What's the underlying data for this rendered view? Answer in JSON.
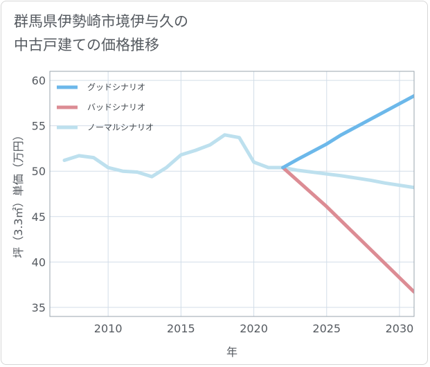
{
  "title_lines": [
    "群馬県伊勢崎市境伊与久の",
    "中古戸建ての価格推移"
  ],
  "chart_data": {
    "type": "line",
    "xlabel": "年",
    "ylabel": "坪（3.3㎡）単価（万円）",
    "xlim": [
      2006,
      2031
    ],
    "ylim": [
      34,
      61
    ],
    "x_ticks": [
      2010,
      2015,
      2020,
      2025,
      2030
    ],
    "y_ticks": [
      35,
      40,
      45,
      50,
      55,
      60
    ],
    "grid": true,
    "legend_position": "top-left",
    "series": [
      {
        "name": "グッドシナリオ",
        "color": "#6cb8ea",
        "x": [
          2022,
          2023,
          2025,
          2026,
          2031
        ],
        "values": [
          50.4,
          51.3,
          53.0,
          54.0,
          58.3
        ]
      },
      {
        "name": "バッドシナリオ",
        "color": "#dc8c94",
        "x": [
          2022,
          2025,
          2031
        ],
        "values": [
          50.4,
          46.1,
          36.7
        ]
      },
      {
        "name": "ノーマルシナリオ",
        "color": "#bde0ee",
        "x": [
          2007,
          2008,
          2009,
          2010,
          2011,
          2012,
          2013,
          2014,
          2015,
          2016,
          2017,
          2018,
          2019,
          2020,
          2021,
          2022,
          2023,
          2025,
          2026,
          2028,
          2029,
          2031
        ],
        "values": [
          51.2,
          51.7,
          51.5,
          50.4,
          50.0,
          49.9,
          49.4,
          50.4,
          51.8,
          52.3,
          52.9,
          54.0,
          53.7,
          51.0,
          50.4,
          50.4,
          50.1,
          49.7,
          49.5,
          49.0,
          48.7,
          48.2
        ]
      }
    ]
  }
}
